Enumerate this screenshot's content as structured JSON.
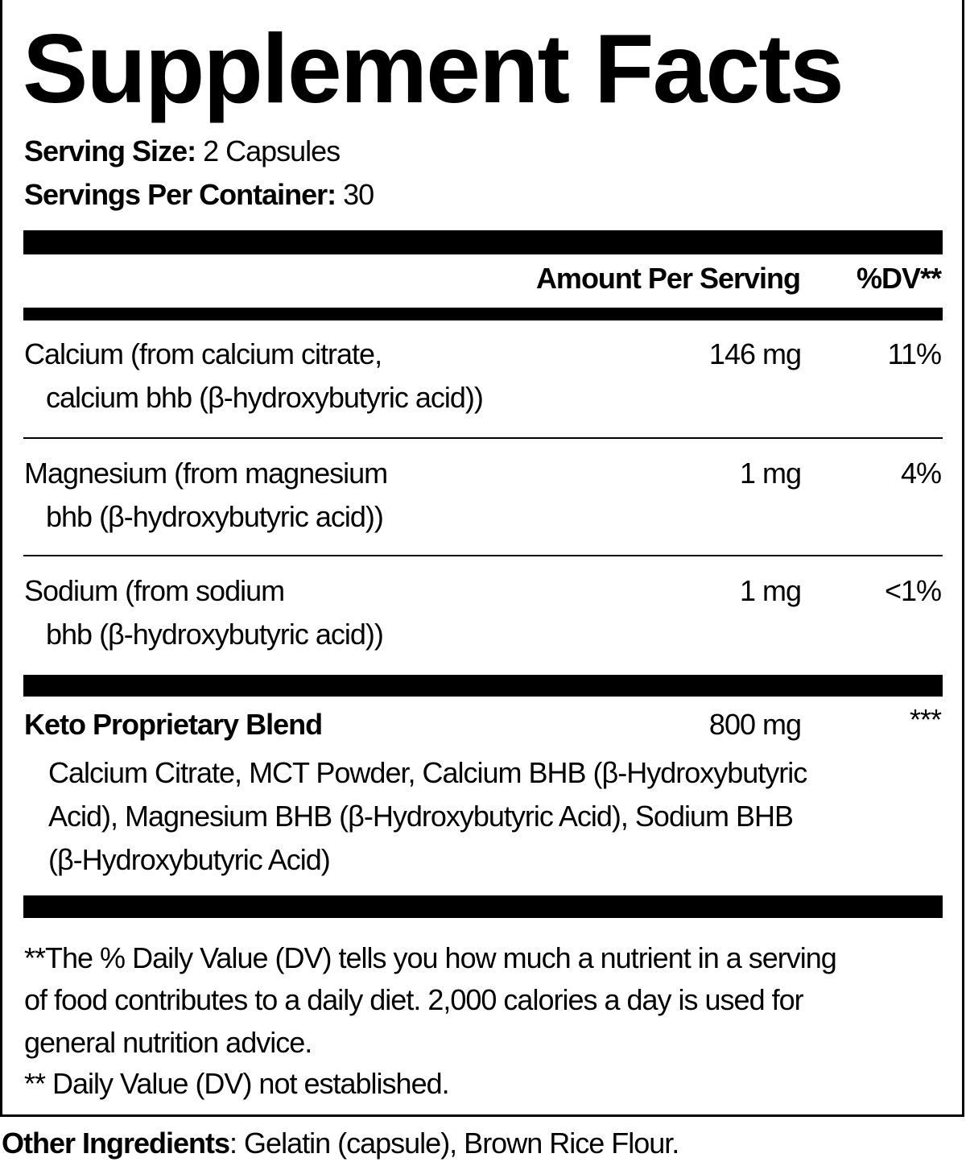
{
  "title": "Supplement Facts",
  "serving": {
    "size_label": "Serving Size:",
    "size_value": " 2 Capsules",
    "per_container_label": "Servings Per Container:",
    "per_container_value": " 30"
  },
  "header": {
    "amount": "Amount Per Serving",
    "dv": "%DV**"
  },
  "nutrients": [
    {
      "line1": "Calcium (from calcium citrate,",
      "line2": "calcium bhb (β-hydroxybutyric acid))",
      "amount": "146 mg",
      "dv": "11%"
    },
    {
      "line1": "Magnesium (from magnesium",
      "line2": "bhb (β-hydroxybutyric acid))",
      "amount": "1 mg",
      "dv": "4%"
    },
    {
      "line1": "Sodium (from sodium",
      "line2": "bhb (β-hydroxybutyric acid))",
      "amount": "1 mg",
      "dv": "<1%"
    }
  ],
  "blend": {
    "name": "Keto Proprietary Blend",
    "amount": "800 mg",
    "dv": "***",
    "lines": [
      "Calcium Citrate, MCT Powder, Calcium BHB (β-Hydroxybutyric",
      "Acid), Magnesium BHB (β-Hydroxybutyric Acid), Sodium BHB",
      "(β-Hydroxybutyric Acid)"
    ]
  },
  "footnotes": [
    "**The % Daily Value (DV) tells you how much a nutrient in a serving",
    "of food contributes to a daily diet. 2,000 calories a day is used for",
    "general nutrition advice.",
    "** Daily Value (DV) not established."
  ],
  "other": {
    "label": "Other Ingredients",
    "value": ": Gelatin (capsule), Brown Rice Flour."
  }
}
